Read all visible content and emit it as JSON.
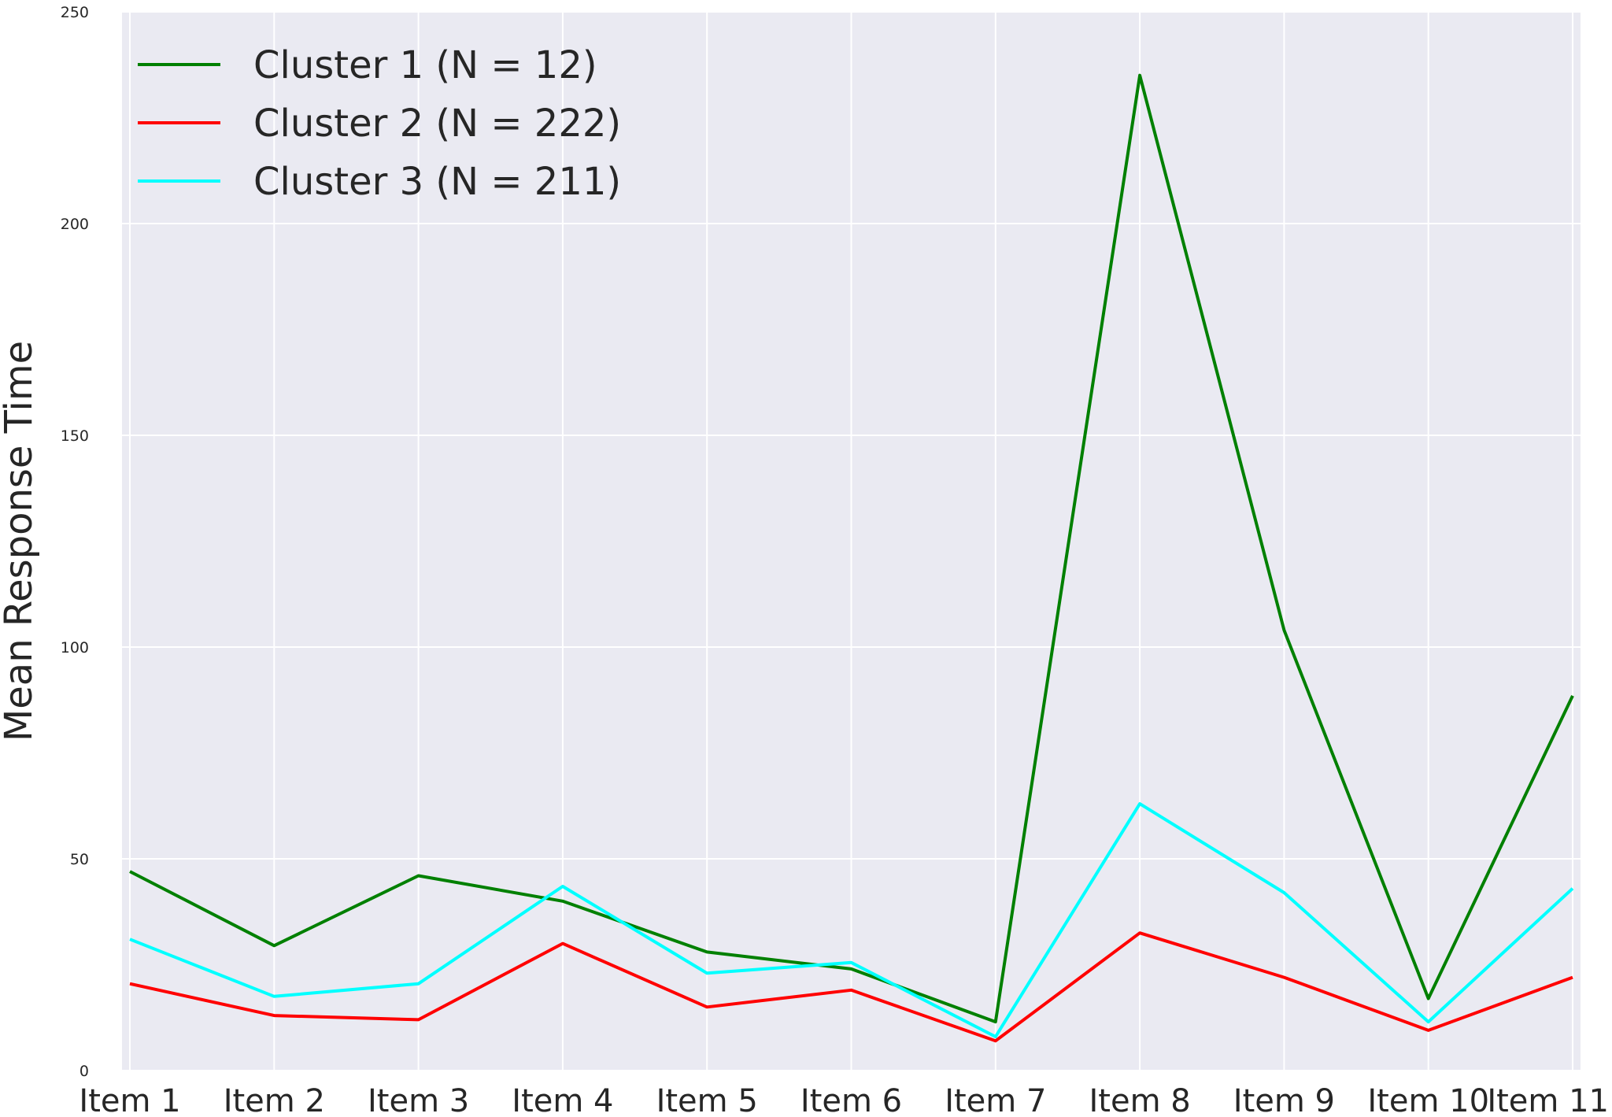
{
  "chart_data": {
    "type": "line",
    "title": "",
    "xlabel": "",
    "ylabel": "Mean Response Time",
    "categories": [
      "Item 1",
      "Item 2",
      "Item 3",
      "Item 4",
      "Item 5",
      "Item 6",
      "Item 7",
      "Item 8",
      "Item 9",
      "Item 10",
      "Item 11"
    ],
    "ylim": [
      0,
      250
    ],
    "yticks": [
      0,
      50,
      100,
      150,
      200,
      250
    ],
    "grid": true,
    "legend": "top-left",
    "background": "#eaeaf2",
    "series": [
      {
        "name": "Cluster 1 (N = 12)",
        "color": "#008000",
        "values": [
          47,
          29.5,
          46,
          40,
          28,
          24,
          11.5,
          235,
          104,
          17,
          88.5
        ]
      },
      {
        "name": "Cluster 2 (N = 222)",
        "color": "#ff0000",
        "values": [
          20.5,
          13,
          12,
          30,
          15,
          19,
          7,
          32.5,
          22,
          9.5,
          22
        ]
      },
      {
        "name": "Cluster 3 (N = 211)",
        "color": "#00ffff",
        "values": [
          31,
          17.5,
          20.5,
          43.5,
          23,
          25.5,
          8,
          63,
          42,
          11.5,
          43
        ]
      }
    ]
  }
}
